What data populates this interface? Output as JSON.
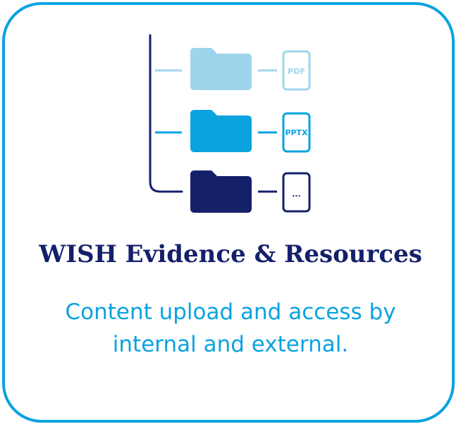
{
  "card": {
    "title": "WISH Evidence & Resources",
    "description_line1": "Content upload and access by",
    "description_line2": "internal and external."
  },
  "diagram": {
    "rows": [
      {
        "doc_label": "PDF",
        "color": "#9fd5ec"
      },
      {
        "doc_label": "PPTX",
        "color": "#0aa3e0"
      },
      {
        "doc_label": "...",
        "color": "#15206b"
      }
    ]
  },
  "colors": {
    "border": "#0aa3e0",
    "title": "#15206b",
    "description": "#0aa3e0",
    "light_blue": "#9fd5ec",
    "mid_blue": "#0aa3e0",
    "navy": "#15206b"
  }
}
